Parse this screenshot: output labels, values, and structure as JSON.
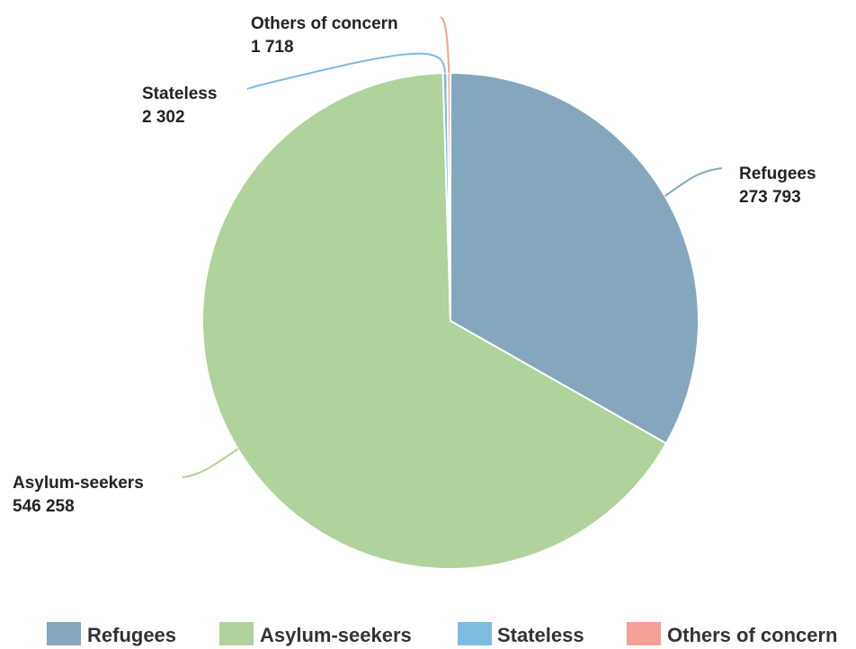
{
  "chart_data": {
    "type": "pie",
    "title": "",
    "legend_position": "bottom",
    "slices": [
      {
        "name": "Refugees",
        "value": 273793,
        "value_label": "273 793",
        "color": "#84a7bd"
      },
      {
        "name": "Asylum-seekers",
        "value": 546258,
        "value_label": "546 258",
        "color": "#b0d29b"
      },
      {
        "name": "Stateless",
        "value": 2302,
        "value_label": "2 302",
        "color": "#7dbbdf"
      },
      {
        "name": "Others of concern",
        "value": 1718,
        "value_label": "1 718",
        "color": "#f4a196"
      }
    ]
  }
}
